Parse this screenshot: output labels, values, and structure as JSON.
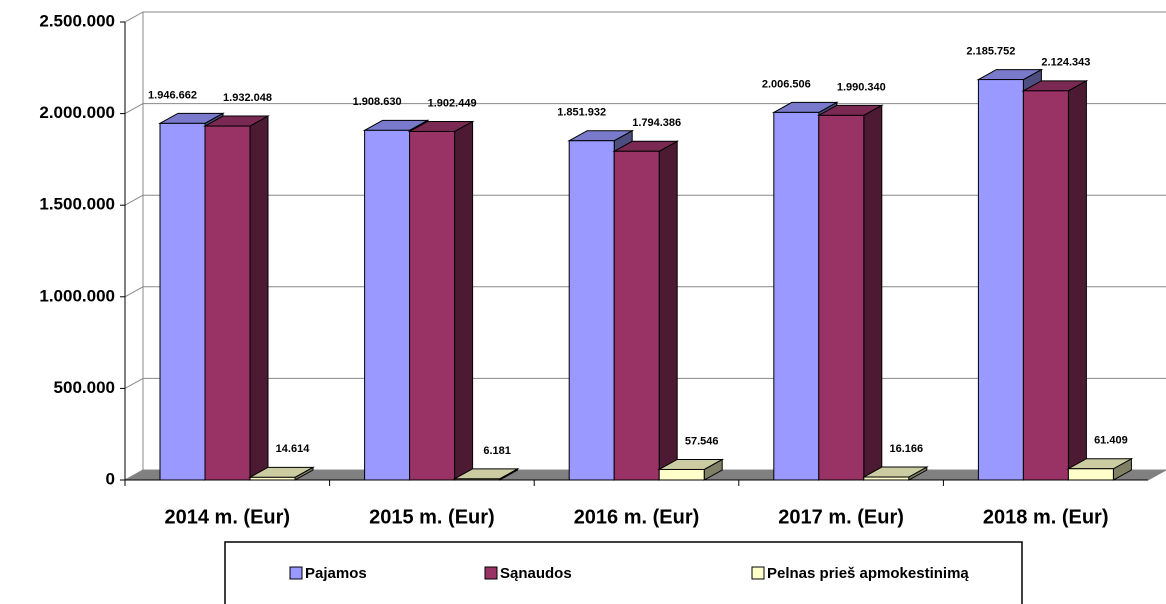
{
  "chart_data": {
    "type": "bar3d",
    "categories": [
      "2014 m. (Eur)",
      "2015 m. (Eur)",
      "2016 m. (Eur)",
      "2017 m. (Eur)",
      "2018 m. (Eur)"
    ],
    "series": [
      {
        "name": "Pajamos",
        "color": "#9999ff",
        "values": [
          1946662,
          1908630,
          1851932,
          2006506,
          2185752
        ],
        "value_labels": [
          "1.946.662",
          "1.908.630",
          "1.851.932",
          "2.006.506",
          "2.185.752"
        ]
      },
      {
        "name": "Sąnaudos",
        "color": "#993366",
        "values": [
          1932048,
          1902449,
          1794386,
          1990340,
          2124343
        ],
        "value_labels": [
          "1.932.048",
          "1.902.449",
          "1.794.386",
          "1.990.340",
          "2.124.343"
        ]
      },
      {
        "name": "Pelnas prieš apmokestinimą",
        "color": "#ffffcc",
        "values": [
          14614,
          6181,
          57546,
          16166,
          61409
        ],
        "value_labels": [
          "14.614",
          "6.181",
          "57.546",
          "16.166",
          "61.409"
        ]
      }
    ],
    "ylim": [
      0,
      2500000
    ],
    "yticks": [
      0,
      {
        "value": 500000,
        "label": "500.000"
      },
      {
        "value": 1000000,
        "label": "1.000.000"
      },
      {
        "value": 1500000,
        "label": "1.500.000"
      },
      {
        "value": 2000000,
        "label": "2.000.000"
      },
      {
        "value": 2500000,
        "label": "2.500.000"
      }
    ],
    "grid": true,
    "legend": "bottom"
  }
}
